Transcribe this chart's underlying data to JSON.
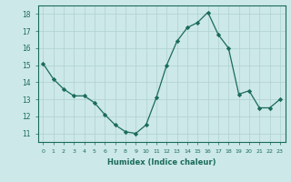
{
  "x": [
    0,
    1,
    2,
    3,
    4,
    5,
    6,
    7,
    8,
    9,
    10,
    11,
    12,
    13,
    14,
    15,
    16,
    17,
    18,
    19,
    20,
    21,
    22,
    23
  ],
  "y": [
    15.1,
    14.2,
    13.6,
    13.2,
    13.2,
    12.8,
    12.1,
    11.5,
    11.1,
    11.0,
    11.5,
    13.1,
    15.0,
    16.4,
    17.2,
    17.5,
    18.1,
    16.8,
    16.0,
    13.3,
    13.5,
    12.5,
    12.5,
    13.0
  ],
  "xlabel": "Humidex (Indice chaleur)",
  "ylim": [
    10.5,
    18.5
  ],
  "xlim": [
    -0.5,
    23.5
  ],
  "yticks": [
    11,
    12,
    13,
    14,
    15,
    16,
    17,
    18
  ],
  "xticks": [
    0,
    1,
    2,
    3,
    4,
    5,
    6,
    7,
    8,
    9,
    10,
    11,
    12,
    13,
    14,
    15,
    16,
    17,
    18,
    19,
    20,
    21,
    22,
    23
  ],
  "line_color": "#1a6b5a",
  "marker_color": "#1a6b5a",
  "bg_color": "#cce8e8",
  "grid_color": "#b0d0d0",
  "axis_bg": "#cce8e8",
  "tick_color": "#1a6b5a",
  "label_color": "#1a6b5a"
}
